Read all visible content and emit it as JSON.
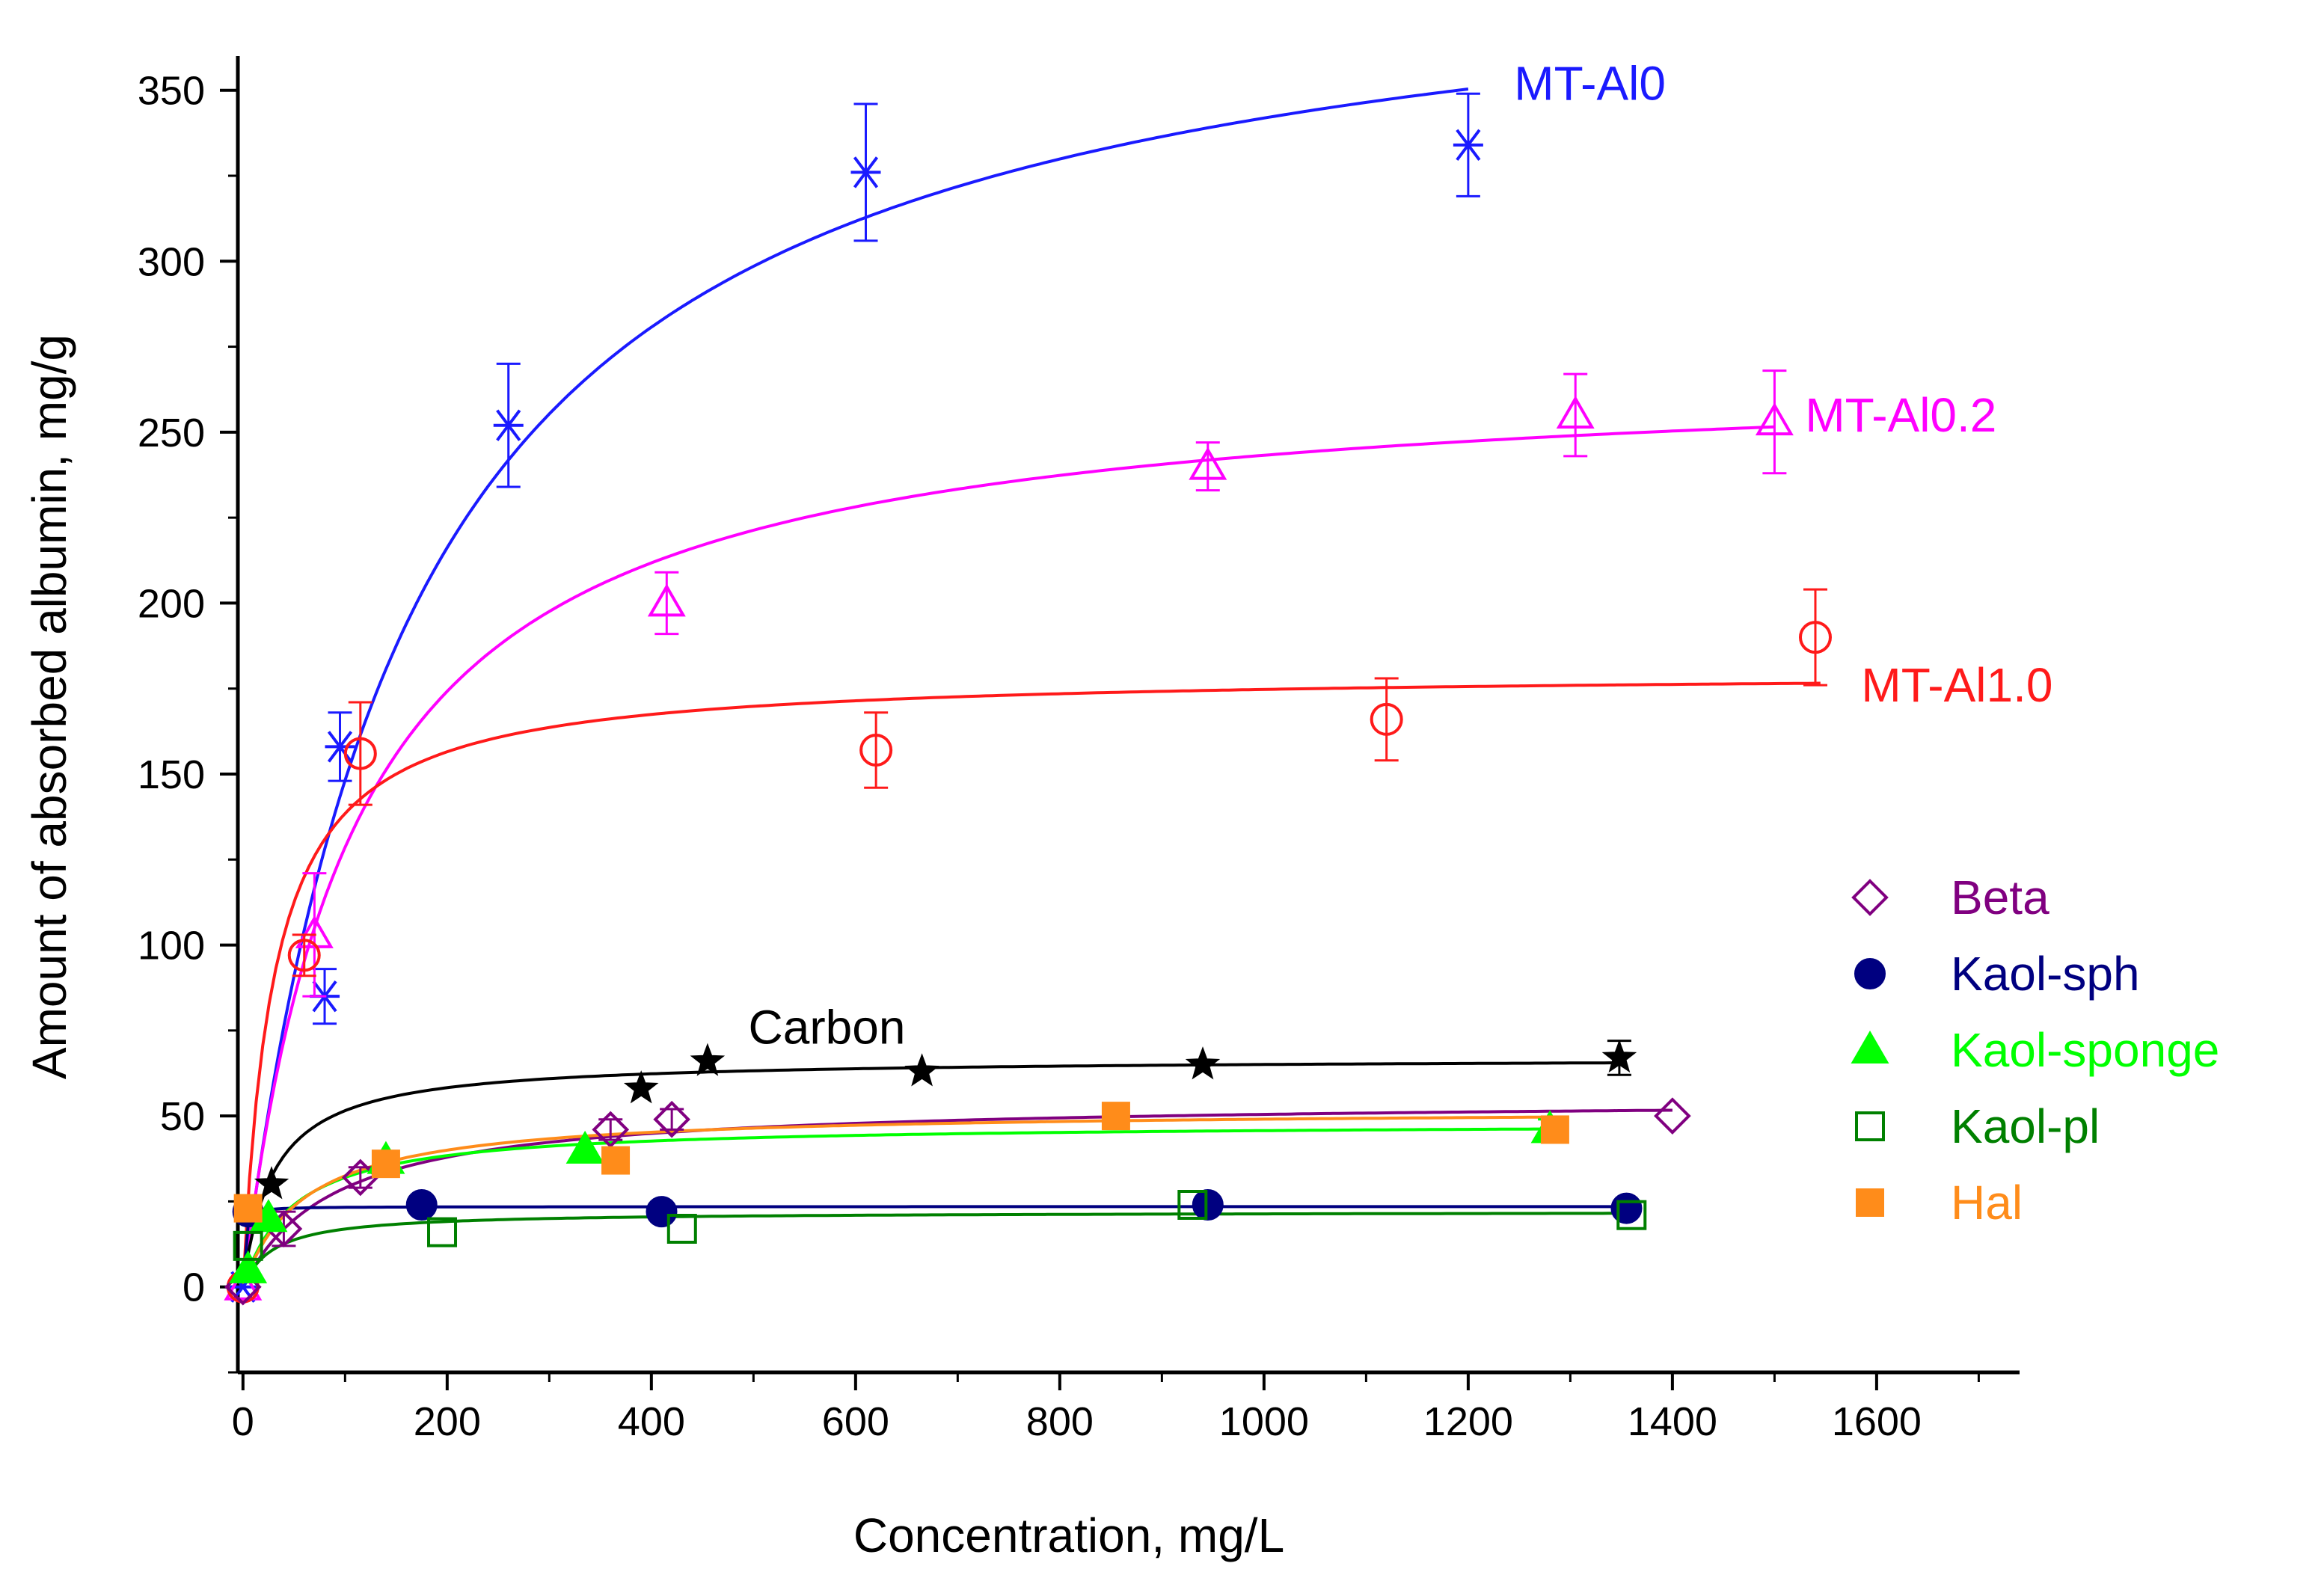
{
  "chart_data": {
    "type": "scatter",
    "xlabel": "Concentration, mg/L",
    "ylabel": "Amount of absorbed albumin, mg/g",
    "xlim": [
      -5,
      1740
    ],
    "ylim": [
      -25,
      360
    ],
    "x_ticks": [
      0,
      200,
      400,
      600,
      800,
      1000,
      1200,
      1400,
      1600
    ],
    "y_ticks": [
      0,
      50,
      100,
      150,
      200,
      250,
      300,
      350
    ],
    "legend_position": "right",
    "series": [
      {
        "name": "MT-Al0",
        "color": "#1a1aff",
        "marker": "asterisk",
        "label": "MT-Al0",
        "label_at": [
          1245,
          352
        ],
        "fit": {
          "qmax": 400,
          "K": 170,
          "xmax": 1200
        },
        "points": [
          {
            "x": 0,
            "y": 0,
            "err": 0
          },
          {
            "x": 80,
            "y": 85,
            "err": 8
          },
          {
            "x": 95,
            "y": 158,
            "err": 10
          },
          {
            "x": 260,
            "y": 252,
            "err": 18
          },
          {
            "x": 610,
            "y": 326,
            "err": 20
          },
          {
            "x": 1200,
            "y": 334,
            "err": 15
          }
        ]
      },
      {
        "name": "MT-Al0.2",
        "color": "#ff00ff",
        "marker": "triangle-open",
        "label": "MT-Al0.2",
        "label_at": [
          1530,
          255
        ],
        "fit": {
          "qmax": 270,
          "K": 110,
          "xmax": 1500
        },
        "points": [
          {
            "x": 0,
            "y": 0,
            "err": 0
          },
          {
            "x": 70,
            "y": 103,
            "err": 18
          },
          {
            "x": 415,
            "y": 200,
            "err": 9
          },
          {
            "x": 945,
            "y": 240,
            "err": 7
          },
          {
            "x": 1305,
            "y": 255,
            "err": 12
          },
          {
            "x": 1500,
            "y": 253,
            "err": 15
          }
        ]
      },
      {
        "name": "MT-Al1.0",
        "color": "#ff1a1a",
        "marker": "circle-open",
        "label": "MT-Al1.0",
        "label_at": [
          1585,
          176
        ],
        "fit": {
          "qmax": 180,
          "K": 30,
          "xmax": 1545
        },
        "points": [
          {
            "x": 0,
            "y": 0,
            "err": 0
          },
          {
            "x": 60,
            "y": 97,
            "err": 6
          },
          {
            "x": 115,
            "y": 156,
            "err": 15
          },
          {
            "x": 620,
            "y": 157,
            "err": 11
          },
          {
            "x": 1120,
            "y": 166,
            "err": 12
          },
          {
            "x": 1540,
            "y": 190,
            "err": 14
          }
        ]
      },
      {
        "name": "Carbon",
        "color": "#000000",
        "marker": "star",
        "label": "Carbon",
        "label_at": [
          495,
          76
        ],
        "fit": {
          "qmax": 67,
          "K": 30,
          "xmax": 1350
        },
        "points": [
          {
            "x": 28,
            "y": 30,
            "err": 0
          },
          {
            "x": 390,
            "y": 58,
            "err": 0
          },
          {
            "x": 455,
            "y": 66,
            "err": 0
          },
          {
            "x": 665,
            "y": 63,
            "err": 0
          },
          {
            "x": 940,
            "y": 65,
            "err": 0
          },
          {
            "x": 1348,
            "y": 67,
            "err": 5
          }
        ]
      },
      {
        "name": "Beta",
        "color": "#800080",
        "marker": "diamond-open",
        "fit": {
          "qmax": 55,
          "K": 90,
          "xmax": 1400
        },
        "points": [
          {
            "x": 0,
            "y": 0,
            "err": 0
          },
          {
            "x": 40,
            "y": 17,
            "err": 5
          },
          {
            "x": 115,
            "y": 32,
            "err": 3
          },
          {
            "x": 360,
            "y": 46,
            "err": 3
          },
          {
            "x": 420,
            "y": 49,
            "err": 3
          },
          {
            "x": 1400,
            "y": 50,
            "err": 0
          }
        ]
      },
      {
        "name": "Kaol-sph",
        "color": "#000080",
        "marker": "circle-filled",
        "fit": {
          "qmax": 23.5,
          "K": 1,
          "xmax": 1355
        },
        "points": [
          {
            "x": 5,
            "y": 22,
            "err": 0
          },
          {
            "x": 175,
            "y": 24,
            "err": 0
          },
          {
            "x": 410,
            "y": 22,
            "err": 0
          },
          {
            "x": 945,
            "y": 24,
            "err": 0
          },
          {
            "x": 1355,
            "y": 23,
            "err": 0
          }
        ]
      },
      {
        "name": "Kaol-sponge",
        "color": "#00ff00",
        "marker": "triangle-filled",
        "fit": {
          "qmax": 48,
          "K": 50,
          "xmax": 1280
        },
        "points": [
          {
            "x": 5,
            "y": 5,
            "err": 0
          },
          {
            "x": 25,
            "y": 20,
            "err": 0
          },
          {
            "x": 140,
            "y": 37,
            "err": 0
          },
          {
            "x": 335,
            "y": 40,
            "err": 0
          },
          {
            "x": 1280,
            "y": 46,
            "err": 3
          }
        ]
      },
      {
        "name": "Kaol-pl",
        "color": "#008000",
        "marker": "square-open",
        "fit": {
          "qmax": 22,
          "K": 30,
          "xmax": 1360
        },
        "points": [
          {
            "x": 5,
            "y": 12,
            "err": 0
          },
          {
            "x": 195,
            "y": 16,
            "err": 0
          },
          {
            "x": 430,
            "y": 17,
            "err": 0
          },
          {
            "x": 930,
            "y": 24,
            "err": 0
          },
          {
            "x": 1360,
            "y": 21,
            "err": 0
          }
        ]
      },
      {
        "name": "Hal",
        "color": "#ff8c1a",
        "marker": "square-filled",
        "fit": {
          "qmax": 52,
          "K": 60,
          "xmax": 1285
        },
        "points": [
          {
            "x": 5,
            "y": 23,
            "err": 0
          },
          {
            "x": 140,
            "y": 36,
            "err": 0
          },
          {
            "x": 365,
            "y": 37,
            "err": 0
          },
          {
            "x": 855,
            "y": 50,
            "err": 0
          },
          {
            "x": 1285,
            "y": 46,
            "err": 0
          }
        ]
      }
    ],
    "legend": [
      {
        "name": "Beta",
        "color": "#800080",
        "marker": "diamond-open"
      },
      {
        "name": "Kaol-sph",
        "color": "#000080",
        "marker": "circle-filled"
      },
      {
        "name": "Kaol-sponge",
        "color": "#00ff00",
        "marker": "triangle-filled"
      },
      {
        "name": "Kaol-pl",
        "color": "#008000",
        "marker": "square-open"
      },
      {
        "name": "Hal",
        "color": "#ff8c1a",
        "marker": "square-filled"
      }
    ]
  }
}
